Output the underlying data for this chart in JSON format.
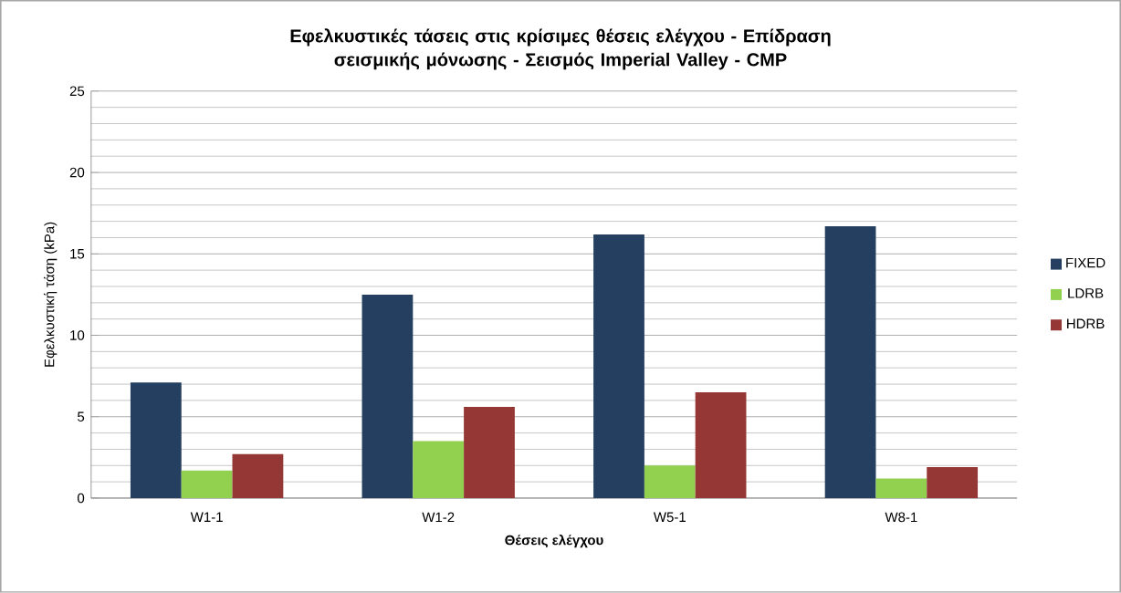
{
  "chart_data": {
    "type": "bar",
    "title": "Εφελκυστικές τάσεις στις κρίσιμες θέσεις ελέγχου - Επίδραση σεισμικής μόνωσης - Σεισμός Imperial Valley - CMP",
    "xlabel": "Θέσεις ελέγχου",
    "ylabel": "Εφελκυστική τάση  (kPa)",
    "categories": [
      "W1-1",
      "W1-2",
      "W5-1",
      "W8-1"
    ],
    "series": [
      {
        "name": "FIXED",
        "color": "#243f60",
        "values": [
          7.1,
          12.5,
          16.2,
          16.7
        ]
      },
      {
        "name": "LDRB",
        "color": "#92d050",
        "values": [
          1.7,
          3.5,
          2.0,
          1.2
        ]
      },
      {
        "name": "HDRB",
        "color": "#953735",
        "values": [
          2.7,
          5.6,
          6.5,
          1.9
        ]
      }
    ],
    "ylim": [
      0,
      25
    ],
    "yticks": [
      0,
      5,
      10,
      15,
      20,
      25
    ],
    "grid": "y",
    "legend": "right"
  }
}
